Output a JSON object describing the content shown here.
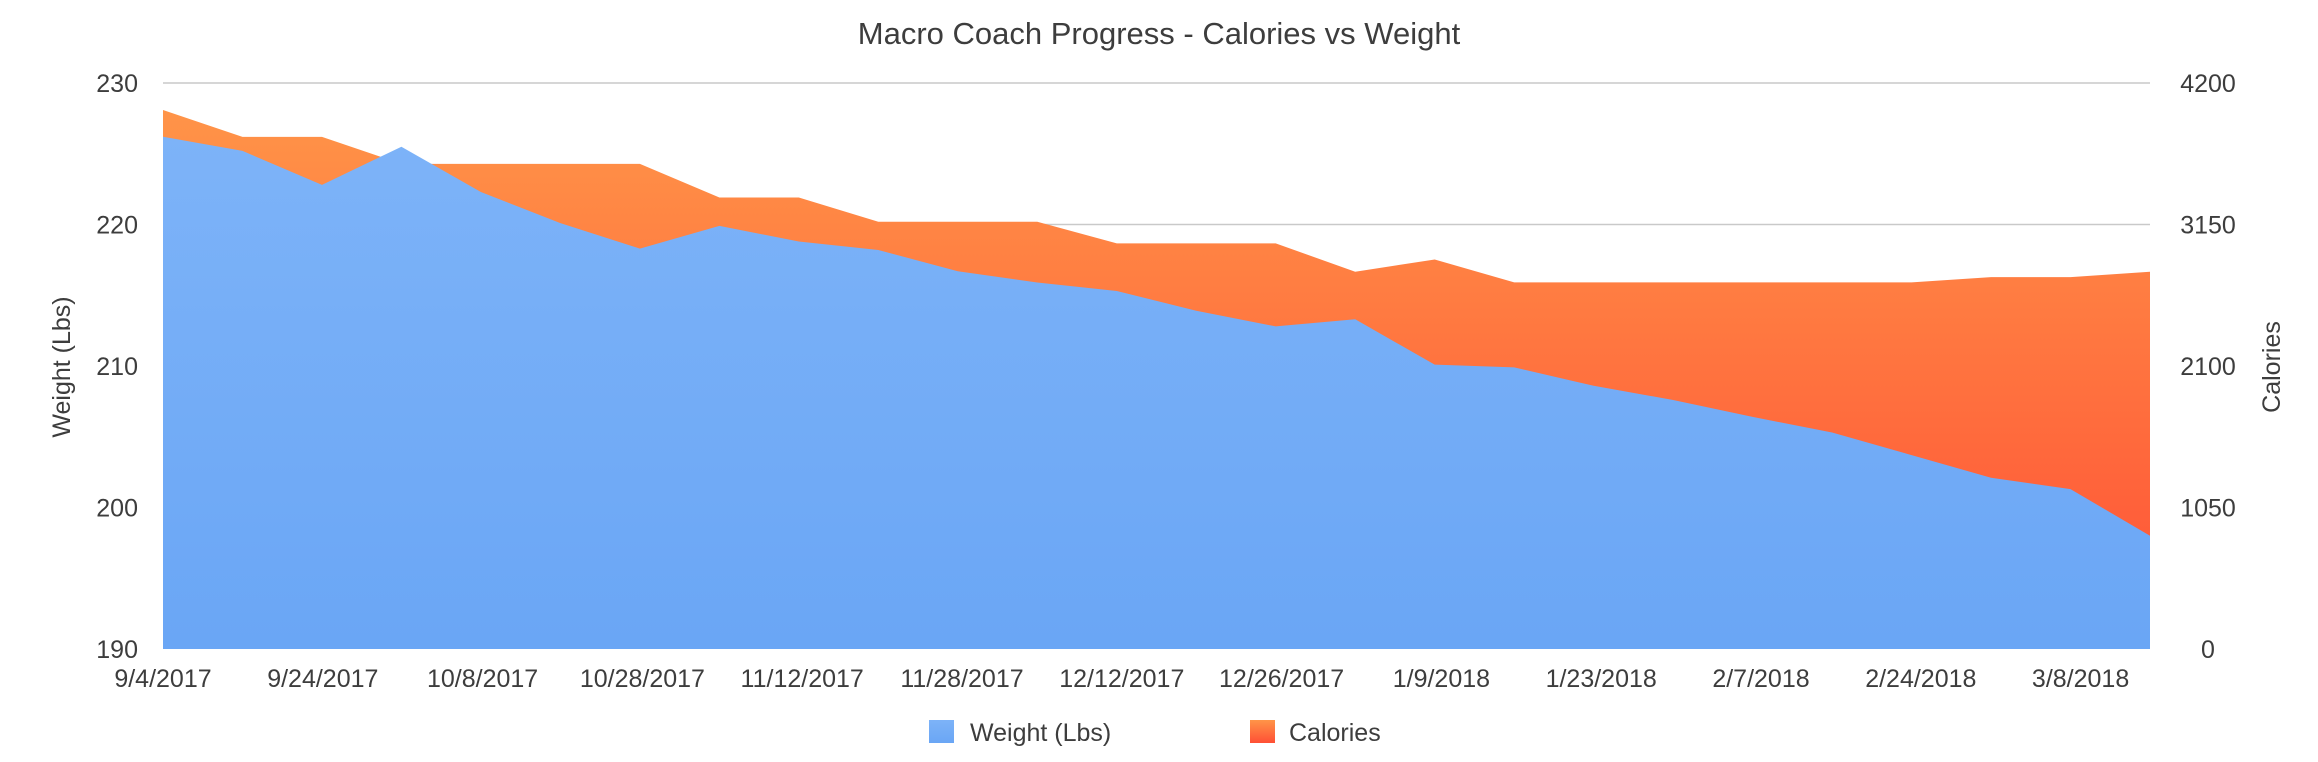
{
  "chart_data": {
    "type": "area",
    "title": "Macro Coach Progress - Calories vs Weight",
    "x_tick_labels": [
      "9/4/2017",
      "9/24/2017",
      "10/8/2017",
      "10/28/2017",
      "11/12/2017",
      "11/28/2017",
      "12/12/2017",
      "12/26/2017",
      "1/9/2018",
      "1/23/2018",
      "2/7/2018",
      "2/24/2018",
      "3/8/2018"
    ],
    "y_left": {
      "label": "Weight (Lbs)",
      "ylim": [
        190,
        230
      ],
      "ticks": [
        190,
        200,
        210,
        220,
        230
      ]
    },
    "y_right": {
      "label": "Calories",
      "ylim": [
        0,
        4200
      ],
      "ticks": [
        0,
        1050,
        2100,
        3150,
        4200
      ]
    },
    "grid": true,
    "legend_position": "bottom",
    "series": [
      {
        "name": "Weight (Lbs)",
        "axis": "left",
        "color_top": "#7db3f8",
        "color_bottom": "#6aa6f5",
        "values": [
          226.2,
          225.2,
          222.8,
          225.5,
          222.3,
          220.1,
          218.3,
          219.9,
          218.8,
          218.2,
          216.7,
          215.9,
          215.3,
          213.9,
          212.8,
          213.3,
          210.1,
          209.9,
          208.6,
          207.6,
          206.4,
          205.3,
          203.7,
          202.1,
          201.3,
          198.0
        ]
      },
      {
        "name": "Calories",
        "axis": "right",
        "color_top": "#ff9448",
        "color_bottom": "#ff4f35",
        "values": [
          4000,
          3800,
          3800,
          3600,
          3600,
          3600,
          3600,
          3350,
          3350,
          3170,
          3170,
          3170,
          3010,
          3010,
          3010,
          2800,
          2890,
          2720,
          2720,
          2720,
          2720,
          2720,
          2720,
          2760,
          2760,
          2800
        ]
      }
    ]
  }
}
